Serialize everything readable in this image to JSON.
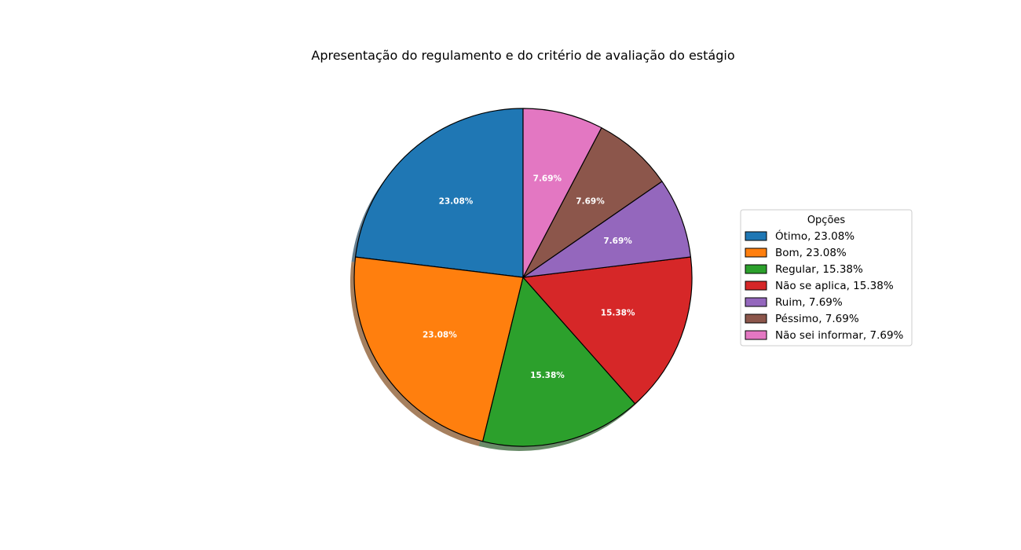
{
  "chart_data": {
    "type": "pie",
    "title": "Apresentação do regulamento e do critério de avaliação do estágio",
    "legend": {
      "title": "Opções",
      "placement": "right"
    },
    "start_angle_deg": 90,
    "direction": "counterclockwise",
    "shadow": true,
    "slices": [
      {
        "label": "Ótimo",
        "value": 23.08,
        "display": "23.08%",
        "legend_text": "Ótimo, 23.08%",
        "color": "#1f77b4"
      },
      {
        "label": "Bom",
        "value": 23.08,
        "display": "23.08%",
        "legend_text": "Bom, 23.08%",
        "color": "#ff7f0e"
      },
      {
        "label": "Regular",
        "value": 15.38,
        "display": "15.38%",
        "legend_text": "Regular, 15.38%",
        "color": "#2ca02c"
      },
      {
        "label": "Não se aplica",
        "value": 15.38,
        "display": "15.38%",
        "legend_text": "Não se aplica, 15.38%",
        "color": "#d62728"
      },
      {
        "label": "Ruim",
        "value": 7.69,
        "display": "7.69%",
        "legend_text": "Ruim, 7.69%",
        "color": "#9467bd"
      },
      {
        "label": "Péssimo",
        "value": 7.69,
        "display": "7.69%",
        "legend_text": "Péssimo, 7.69%",
        "color": "#8c564b"
      },
      {
        "label": "Não sei informar",
        "value": 7.69,
        "display": "7.69%",
        "legend_text": "Não sei informar, 7.69%",
        "color": "#e377c2"
      }
    ]
  }
}
